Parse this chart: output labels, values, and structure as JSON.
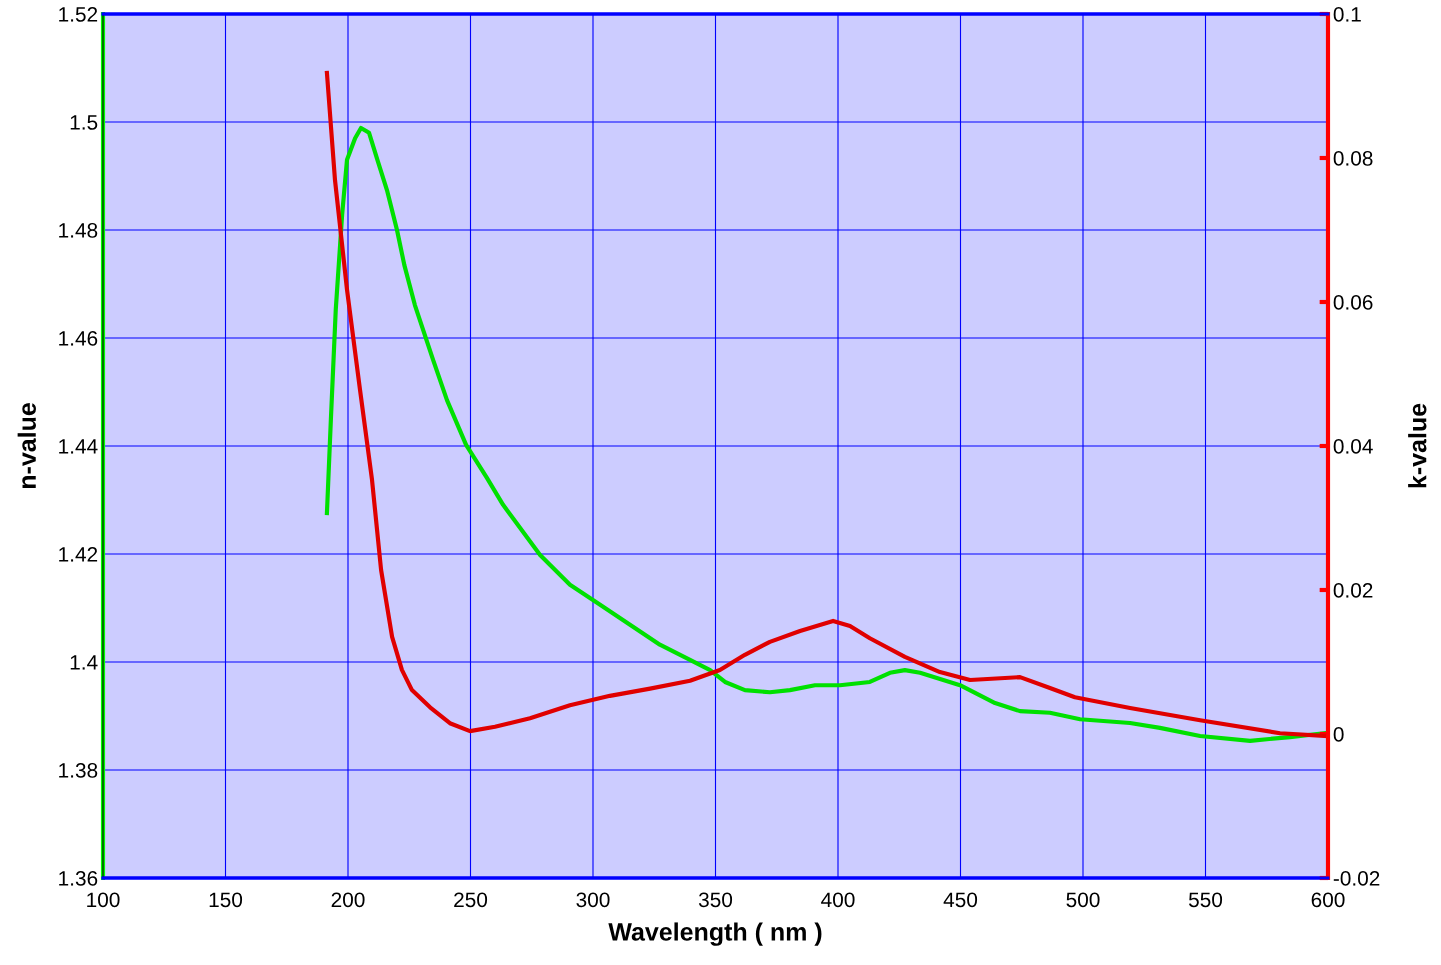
{
  "chart_data": {
    "type": "line",
    "xlabel": "Wavelength ( nm )",
    "ylabel": "n-value",
    "y2label": "k-value",
    "xlim": [
      100,
      600
    ],
    "xticks": [
      100,
      150,
      200,
      250,
      300,
      350,
      400,
      450,
      500,
      550,
      600
    ],
    "ylim": [
      1.36,
      1.52
    ],
    "yticks": [
      1.36,
      1.38,
      1.4,
      1.42,
      1.44,
      1.46,
      1.48,
      1.5,
      1.52
    ],
    "y2lim": [
      -0.02,
      0.1
    ],
    "y2ticks": [
      -0.02,
      0,
      0.02,
      0.04,
      0.06,
      0.08,
      0.1
    ],
    "grid": true,
    "marker": "none",
    "line_style": "solid",
    "series": [
      {
        "color": "#00e000",
        "x": [
          191.4,
          193,
          195,
          197.6,
          199.6,
          202.9,
          205.3,
          208.6,
          212,
          215.9,
          220,
          223,
          227.3,
          234.7,
          240.4,
          248.2,
          256.7,
          263.3,
          278.4,
          290.6,
          302.9,
          315.1,
          327.3,
          339.6,
          347.8,
          353.9,
          362,
          372.2,
          380.4,
          390.6,
          400.8,
          413,
          421.2,
          427.3,
          433.5,
          449.8,
          464.1,
          474.3,
          486.5,
          498.8,
          519.2,
          531.4,
          547.8,
          568.2,
          584.5,
          600
        ],
        "values": [
          1.4276,
          1.4448,
          1.4652,
          1.4828,
          1.493,
          1.497,
          1.4989,
          1.498,
          1.493,
          1.4874,
          1.48,
          1.4735,
          1.4661,
          1.456,
          1.4485,
          1.4402,
          1.4341,
          1.4291,
          1.4198,
          1.4143,
          1.4106,
          1.4069,
          1.4032,
          1.4004,
          1.3985,
          1.3963,
          1.3948,
          1.3944,
          1.3948,
          1.3957,
          1.3957,
          1.3963,
          1.398,
          1.3985,
          1.398,
          1.3957,
          1.3924,
          1.3909,
          1.3906,
          1.3894,
          1.3887,
          1.3878,
          1.3863,
          1.3854,
          1.3861,
          1.3869
        ]
      },
      {
        "color": "#e00000",
        "axis": "y2",
        "x": [
          191.4,
          194.7,
          199.6,
          204.9,
          209.8,
          213.5,
          218,
          222,
          226.1,
          233.5,
          241.6,
          249.8,
          260,
          274.3,
          290.6,
          306.9,
          323.3,
          339.6,
          351.8,
          362,
          372.2,
          384.5,
          398,
          404.9,
          413,
          427.3,
          441.6,
          453.9,
          474.3,
          486.5,
          496.7,
          519.2,
          547.8,
          580.4,
          600
        ],
        "values": [
          0.0918,
          0.0769,
          0.0617,
          0.0478,
          0.0353,
          0.0228,
          0.0135,
          0.0089,
          0.0061,
          0.0037,
          0.0015,
          0.0004,
          0.001,
          0.0022,
          0.004,
          0.0053,
          0.0063,
          0.0074,
          0.0089,
          0.011,
          0.0128,
          0.0143,
          0.0157,
          0.015,
          0.0133,
          0.0107,
          0.0086,
          0.0075,
          0.0079,
          0.0064,
          0.0051,
          0.0036,
          0.0019,
          0.0001,
          -0.0003
        ]
      }
    ]
  }
}
